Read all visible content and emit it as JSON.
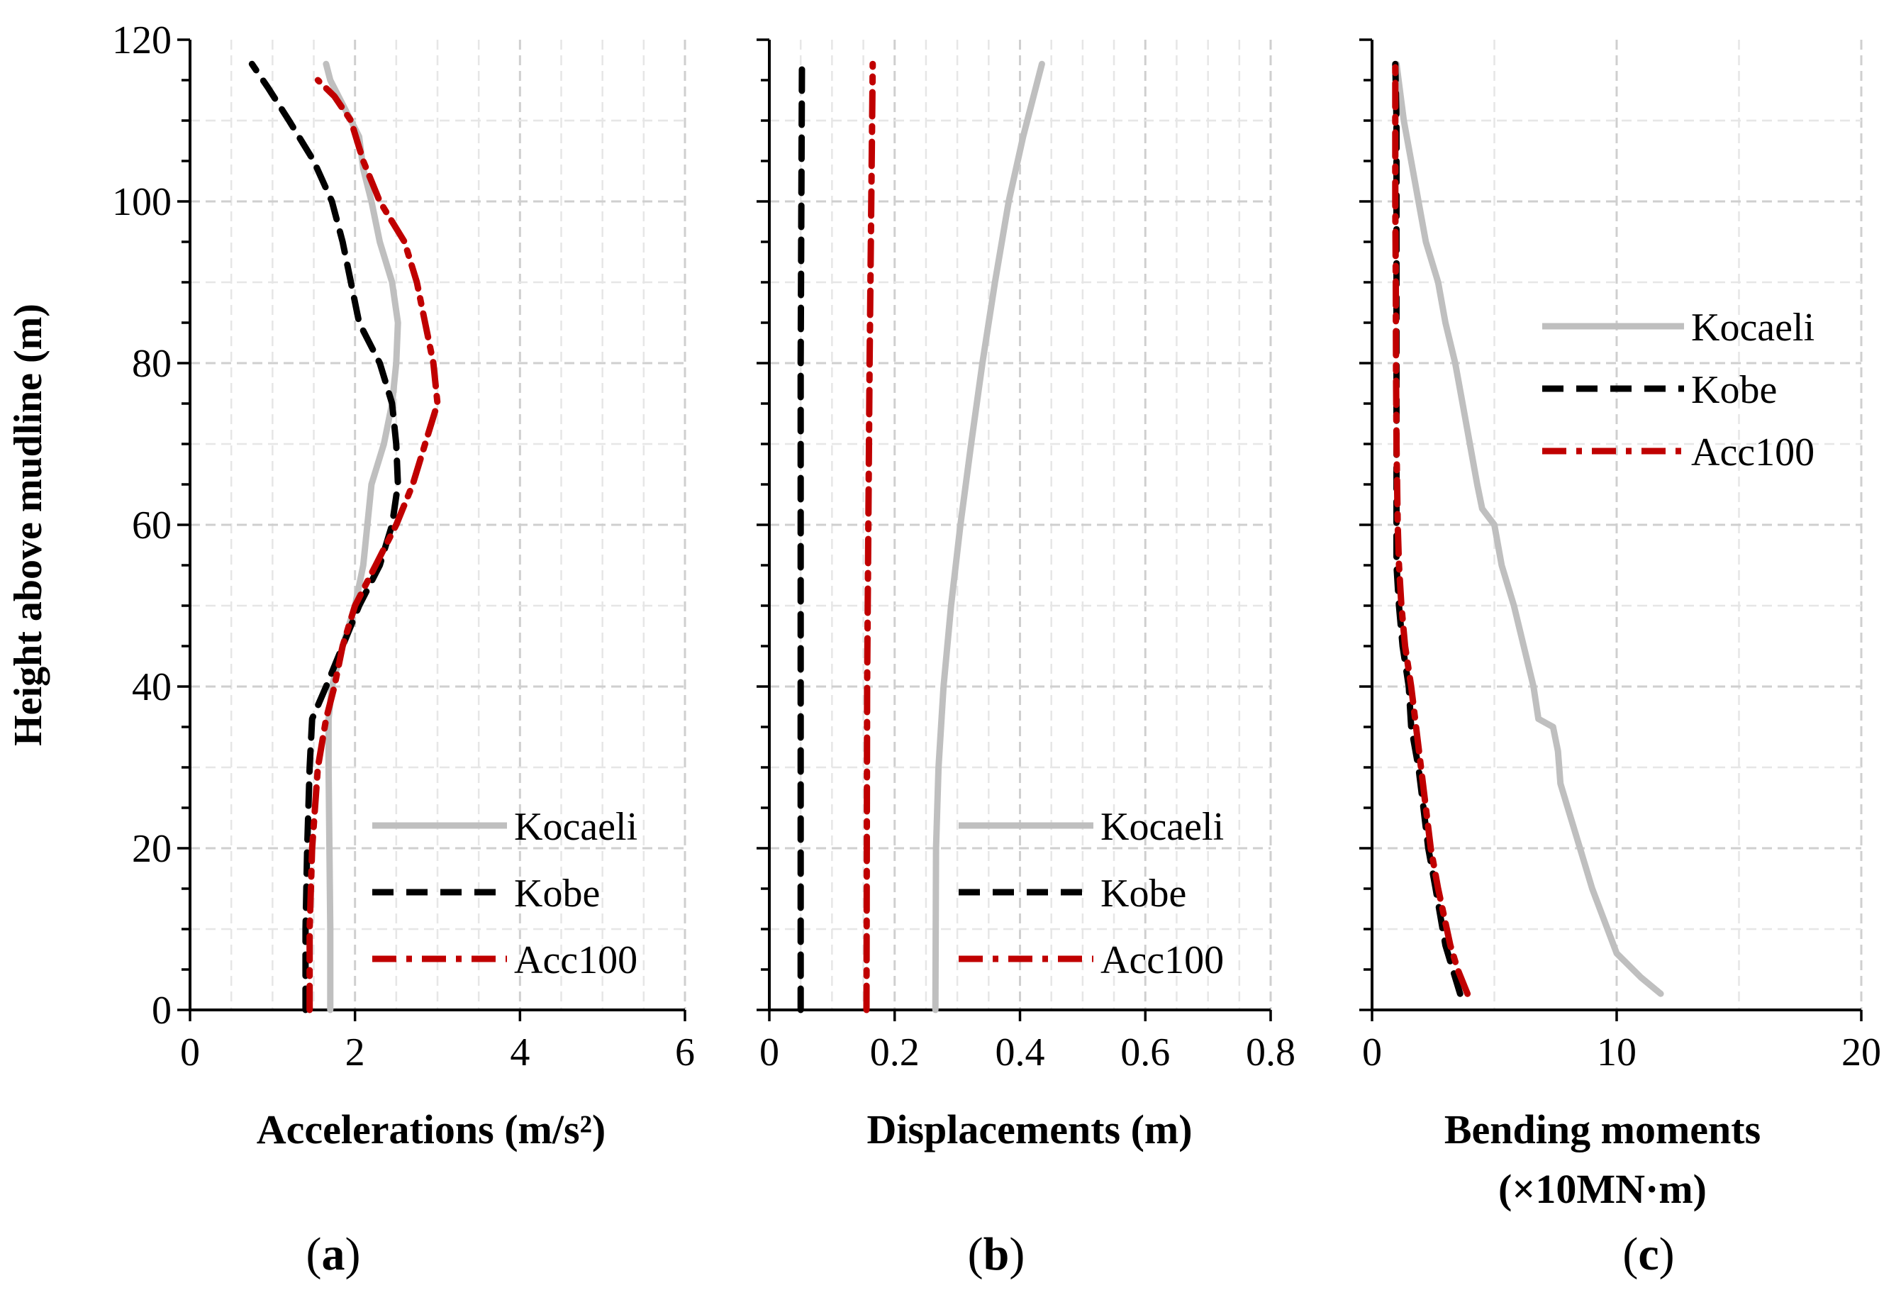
{
  "figure": {
    "ylabel": "Height above  mudline (m)",
    "panel_labels": [
      {
        "open": "(",
        "letter": "a",
        "close": ")"
      },
      {
        "open": "(",
        "letter": "b",
        "close": ")"
      },
      {
        "open": "(",
        "letter": "c",
        "close": ")"
      }
    ]
  },
  "series_style": {
    "Kocaeli": {
      "color": "#bfbfbf",
      "dash": "solid"
    },
    "Kobe": {
      "color": "#000000",
      "dash": "dash"
    },
    "Acc100": {
      "color": "#c00000",
      "dash": "dashdot"
    }
  },
  "chart_data": [
    {
      "type": "line",
      "id": "a",
      "xlabel": "Accelerations (m/s²)",
      "xlabel_lines": [
        "Accelerations (m/s²)"
      ],
      "ylabel": "Height above  mudline (m)",
      "xlim": [
        0,
        6
      ],
      "ylim": [
        0,
        120
      ],
      "xticks": [
        0,
        2,
        4,
        6
      ],
      "xtick_labels": [
        "0",
        "2",
        "4",
        "6"
      ],
      "yticks": [
        0,
        20,
        40,
        60,
        80,
        100,
        120
      ],
      "ytick_labels": [
        "0",
        "20",
        "40",
        "60",
        "80",
        "100",
        "120"
      ],
      "grid": true,
      "legend": {
        "position": "bottom-right",
        "entries": [
          "Kocaeli",
          "Kobe",
          "Acc100"
        ]
      },
      "series": [
        {
          "name": "Kocaeli",
          "points": [
            [
              1.7,
              0
            ],
            [
              1.7,
              10
            ],
            [
              1.69,
              20
            ],
            [
              1.68,
              30
            ],
            [
              1.68,
              36
            ],
            [
              1.72,
              40
            ],
            [
              1.85,
              45
            ],
            [
              2.0,
              50
            ],
            [
              2.1,
              55
            ],
            [
              2.15,
              60
            ],
            [
              2.2,
              65
            ],
            [
              2.35,
              70
            ],
            [
              2.45,
              75
            ],
            [
              2.5,
              80
            ],
            [
              2.52,
              85
            ],
            [
              2.45,
              90
            ],
            [
              2.3,
              95
            ],
            [
              2.2,
              100
            ],
            [
              2.1,
              104
            ],
            [
              2.05,
              108
            ],
            [
              1.85,
              112
            ],
            [
              1.7,
              115
            ],
            [
              1.65,
              117
            ]
          ]
        },
        {
          "name": "Kobe",
          "points": [
            [
              1.4,
              0
            ],
            [
              1.4,
              10
            ],
            [
              1.42,
              20
            ],
            [
              1.45,
              30
            ],
            [
              1.48,
              36
            ],
            [
              1.65,
              40
            ],
            [
              1.85,
              45
            ],
            [
              2.05,
              50
            ],
            [
              2.3,
              55
            ],
            [
              2.45,
              60
            ],
            [
              2.52,
              65
            ],
            [
              2.5,
              70
            ],
            [
              2.45,
              75
            ],
            [
              2.3,
              80
            ],
            [
              2.05,
              85
            ],
            [
              1.95,
              90
            ],
            [
              1.85,
              95
            ],
            [
              1.72,
              100
            ],
            [
              1.5,
              105
            ],
            [
              1.2,
              110
            ],
            [
              0.95,
              114
            ],
            [
              0.75,
              117
            ]
          ]
        },
        {
          "name": "Acc100",
          "points": [
            [
              1.45,
              0
            ],
            [
              1.45,
              10
            ],
            [
              1.48,
              20
            ],
            [
              1.55,
              30
            ],
            [
              1.65,
              36
            ],
            [
              1.75,
              40
            ],
            [
              1.85,
              45
            ],
            [
              2.0,
              50
            ],
            [
              2.25,
              55
            ],
            [
              2.5,
              60
            ],
            [
              2.7,
              65
            ],
            [
              2.85,
              70
            ],
            [
              3.0,
              75
            ],
            [
              2.95,
              80
            ],
            [
              2.85,
              85
            ],
            [
              2.75,
              90
            ],
            [
              2.6,
              95
            ],
            [
              2.3,
              100
            ],
            [
              2.1,
              105
            ],
            [
              1.95,
              110
            ],
            [
              1.75,
              113
            ],
            [
              1.55,
              115
            ]
          ]
        }
      ]
    },
    {
      "type": "line",
      "id": "b",
      "xlabel": "Displacements  (m)",
      "xlabel_lines": [
        "Displacements  (m)"
      ],
      "xlim": [
        0,
        0.8
      ],
      "ylim": [
        0,
        120
      ],
      "xticks": [
        0,
        0.2,
        0.4,
        0.6,
        0.8
      ],
      "xtick_labels": [
        "0",
        "0.2",
        "0.4",
        "0.6",
        "0.8"
      ],
      "yticks": [
        0,
        20,
        40,
        60,
        80,
        100,
        120
      ],
      "grid": true,
      "legend": {
        "position": "bottom-right",
        "entries": [
          "Kocaeli",
          "Kobe",
          "Acc100"
        ]
      },
      "series": [
        {
          "name": "Kocaeli",
          "points": [
            [
              0.265,
              0
            ],
            [
              0.266,
              20
            ],
            [
              0.27,
              30
            ],
            [
              0.278,
              40
            ],
            [
              0.29,
              50
            ],
            [
              0.305,
              60
            ],
            [
              0.322,
              70
            ],
            [
              0.34,
              80
            ],
            [
              0.36,
              90
            ],
            [
              0.382,
              100
            ],
            [
              0.405,
              108
            ],
            [
              0.435,
              117
            ]
          ]
        },
        {
          "name": "Kobe",
          "points": [
            [
              0.05,
              0
            ],
            [
              0.05,
              40
            ],
            [
              0.05,
              80
            ],
            [
              0.052,
              117
            ]
          ]
        },
        {
          "name": "Acc100",
          "points": [
            [
              0.155,
              0
            ],
            [
              0.156,
              40
            ],
            [
              0.16,
              80
            ],
            [
              0.165,
              117
            ]
          ]
        }
      ]
    },
    {
      "type": "line",
      "id": "c",
      "xlabel": "Bending  moments (×10MN·m)",
      "xlabel_lines": [
        "Bending  moments",
        "(×10MN·m)"
      ],
      "xlim": [
        0,
        20
      ],
      "ylim": [
        0,
        120
      ],
      "xticks": [
        0,
        10,
        20
      ],
      "xtick_labels": [
        "0",
        "10",
        "20"
      ],
      "yticks": [
        0,
        20,
        40,
        60,
        80,
        100,
        120
      ],
      "grid": true,
      "legend": {
        "position": "center-right",
        "entries": [
          "Kocaeli",
          "Kobe",
          "Acc100"
        ]
      },
      "series": [
        {
          "name": "Kocaeli",
          "points": [
            [
              11.8,
              2
            ],
            [
              11,
              4
            ],
            [
              10,
              7
            ],
            [
              9.5,
              11
            ],
            [
              9,
              15
            ],
            [
              8.5,
              20
            ],
            [
              8,
              25
            ],
            [
              7.7,
              28
            ],
            [
              7.6,
              32
            ],
            [
              7.4,
              35
            ],
            [
              6.8,
              36
            ],
            [
              6.6,
              40
            ],
            [
              6.2,
              45
            ],
            [
              5.8,
              50
            ],
            [
              5.3,
              55
            ],
            [
              5.0,
              60
            ],
            [
              4.5,
              62
            ],
            [
              4.3,
              65
            ],
            [
              4.0,
              70
            ],
            [
              3.7,
              75
            ],
            [
              3.4,
              80
            ],
            [
              3.0,
              85
            ],
            [
              2.7,
              90
            ],
            [
              2.2,
              95
            ],
            [
              1.9,
              100
            ],
            [
              1.6,
              105
            ],
            [
              1.3,
              110
            ],
            [
              1.0,
              117
            ]
          ]
        },
        {
          "name": "Kobe",
          "points": [
            [
              3.6,
              2
            ],
            [
              3.3,
              5
            ],
            [
              3.0,
              8
            ],
            [
              2.6,
              15
            ],
            [
              2.3,
              20
            ],
            [
              2.1,
              25
            ],
            [
              1.9,
              30
            ],
            [
              1.6,
              35
            ],
            [
              1.5,
              40
            ],
            [
              1.25,
              45
            ],
            [
              1.1,
              50
            ],
            [
              1.0,
              55
            ],
            [
              1.0,
              60
            ],
            [
              1.0,
              70
            ],
            [
              1.0,
              80
            ],
            [
              1.0,
              90
            ],
            [
              1.0,
              100
            ],
            [
              1.0,
              110
            ],
            [
              0.95,
              117
            ]
          ]
        },
        {
          "name": "Acc100",
          "points": [
            [
              3.9,
              2
            ],
            [
              3.5,
              5
            ],
            [
              3.2,
              8
            ],
            [
              2.7,
              15
            ],
            [
              2.4,
              20
            ],
            [
              2.2,
              25
            ],
            [
              2.0,
              30
            ],
            [
              1.8,
              35
            ],
            [
              1.6,
              40
            ],
            [
              1.35,
              45
            ],
            [
              1.2,
              50
            ],
            [
              1.1,
              55
            ],
            [
              1.05,
              60
            ],
            [
              1.0,
              70
            ],
            [
              0.98,
              80
            ],
            [
              0.97,
              90
            ],
            [
              0.95,
              100
            ],
            [
              0.95,
              110
            ],
            [
              0.95,
              117
            ]
          ]
        }
      ]
    }
  ]
}
